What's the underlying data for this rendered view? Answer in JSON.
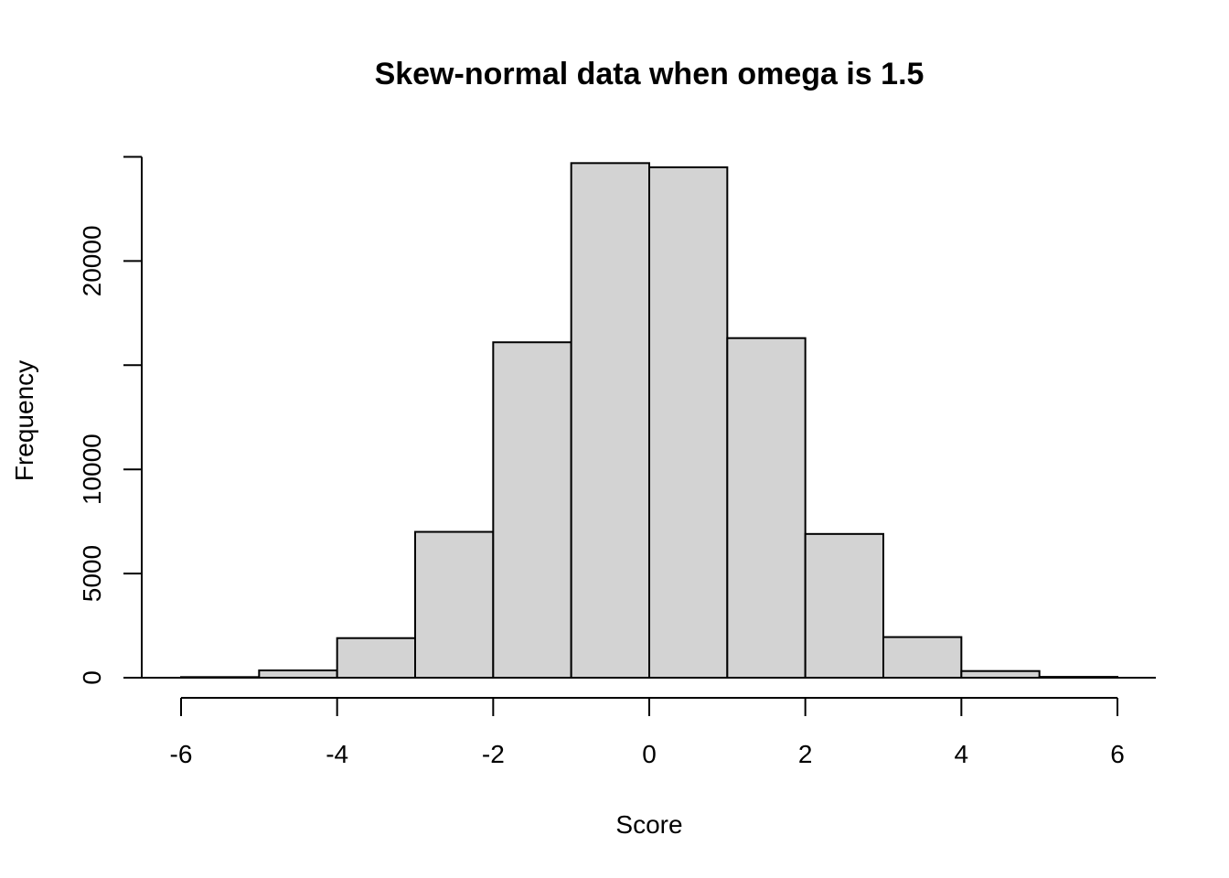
{
  "chart_data": {
    "type": "bar",
    "title": "Skew-normal data when omega is 1.5",
    "xlabel": "Score",
    "ylabel": "Frequency",
    "bins": [
      {
        "from": -6,
        "to": -5,
        "count": 30
      },
      {
        "from": -5,
        "to": -4,
        "count": 350
      },
      {
        "from": -4,
        "to": -3,
        "count": 1900
      },
      {
        "from": -3,
        "to": -2,
        "count": 7000
      },
      {
        "from": -2,
        "to": -1,
        "count": 16100
      },
      {
        "from": -1,
        "to": 0,
        "count": 24700
      },
      {
        "from": 0,
        "to": 1,
        "count": 24500
      },
      {
        "from": 1,
        "to": 2,
        "count": 16300
      },
      {
        "from": 2,
        "to": 3,
        "count": 6900
      },
      {
        "from": 3,
        "to": 4,
        "count": 1950
      },
      {
        "from": 4,
        "to": 5,
        "count": 320
      },
      {
        "from": 5,
        "to": 6,
        "count": 40
      }
    ],
    "xlim": [
      -6,
      6
    ],
    "ylim": [
      0,
      25000
    ],
    "xticks": [
      "-6",
      "-4",
      "-2",
      "0",
      "2",
      "4",
      "6"
    ],
    "yticks": [
      "0",
      "5000",
      "10000",
      "",
      "20000",
      ""
    ],
    "bar_fill": "#d3d3d3",
    "bar_stroke": "#000000",
    "grid": false,
    "legend": "none"
  }
}
